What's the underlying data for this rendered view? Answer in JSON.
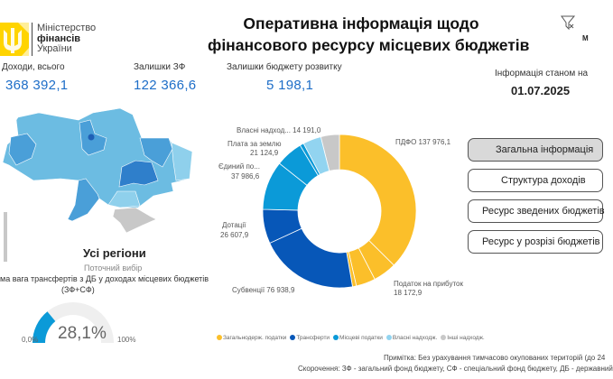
{
  "header": {
    "ministry_line1": "Міністерство",
    "ministry_line2": "фінансів",
    "ministry_line3": "України",
    "title_line1": "Оперативна інформація щодо",
    "title_line2": "фінансового ресурсу місцевих бюджетів",
    "filter_icon": "filter-clear-icon",
    "status_label": "Інформація станом на",
    "status_date": "01.07.2025"
  },
  "kpis": [
    {
      "label": "Доходи, всього",
      "value": "368 392,1"
    },
    {
      "label": "Залишки ЗФ",
      "value": "122 366,6"
    },
    {
      "label": "Залишки бюджету розвитку",
      "value": "5 198,1"
    }
  ],
  "map": {
    "region_label": "Усі регіони",
    "selection_label": "Поточний вибір",
    "colors": {
      "base": "#6cbce2",
      "light": "#8fd0ec",
      "mid": "#4a9fd8",
      "dark": "#2f7fcb",
      "capital": "#1f5fb5",
      "occupied": "#c8c8c8"
    }
  },
  "nav_buttons": [
    {
      "label": "Загальна інформація",
      "active": true
    },
    {
      "label": "Структура доходів",
      "active": false
    },
    {
      "label": "Ресурс зведених бюджетів",
      "active": false
    },
    {
      "label": "Ресурс у розрізі бюджетів",
      "active": false
    }
  ],
  "gauge": {
    "title": "ма вага трансфертів з ДБ у доходах місцевих бюджетів",
    "subtitle": "(ЗФ+СФ)",
    "value": 28.1,
    "value_label": "28,1%",
    "min_label": "0,0%",
    "max_label": "100%",
    "color": "#0b9ad8",
    "track_color": "#efefef"
  },
  "chart_data": {
    "type": "pie",
    "donut": true,
    "slices": [
      {
        "label": "ПДФО",
        "value": 137976.1,
        "text": "ПДФО 137 976,1",
        "group": "Загальнодерж. податки"
      },
      {
        "label": "Податок на прибуток",
        "value": 18172.9,
        "text": "18 172,9",
        "group": "Загальнодерж. податки"
      },
      {
        "label": "",
        "value": 15000,
        "group": "Загальнодерж. податки"
      },
      {
        "label": "",
        "value": 3000,
        "group": "Загальнодерж. податки"
      },
      {
        "label": "Субвенції",
        "value": 76938.9,
        "text": "Субвенції 76 938,9",
        "group": "Трансферти"
      },
      {
        "label": "Дотації",
        "value": 26607.9,
        "text": "26 607,9",
        "group": "Трансферти"
      },
      {
        "label": "Єдиний по...",
        "value": 37986.6,
        "text": "37 986,6",
        "group": "Місцеві податки"
      },
      {
        "label": "Плата за землю",
        "value": 21124.9,
        "text": "21 124,9",
        "group": "Місцеві податки"
      },
      {
        "label": "",
        "value": 3000,
        "group": "Місцеві податки"
      },
      {
        "label": "Власні надход...",
        "value": 14191.0,
        "text": "Власні надход... 14 191,0",
        "group": "Власні надходж."
      },
      {
        "label": "",
        "value": 14400,
        "group": "Інші надходж."
      }
    ],
    "legend": [
      {
        "name": "Загальнодерж. податки",
        "color": "#fbbf2a"
      },
      {
        "name": "Трансферти",
        "color": "#0757b8"
      },
      {
        "name": "Місцеві податки",
        "color": "#0b9ad8"
      },
      {
        "name": "Власні надходж.",
        "color": "#92d4f0"
      },
      {
        "name": "Інші надходж.",
        "color": "#c8c8c8"
      }
    ],
    "legend_position": "bottom"
  },
  "footer": {
    "note": "Примітка: Без урахування тимчасово окупованих територій (до 24",
    "abbrev": "Скорочення: ЗФ - загальний фонд бюджету, СФ - спеціальний фонд бюджету, ДБ - державний"
  }
}
